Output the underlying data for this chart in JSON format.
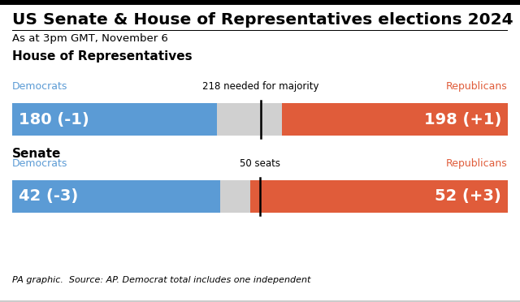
{
  "title": "US Senate & House of Representatives elections 2024",
  "subtitle": "As at 3pm GMT, November 6",
  "footnote": "PA graphic.  Source: AP. Democrat total includes one independent",
  "background_color": "#ffffff",
  "dem_color": "#5b9bd5",
  "rep_color": "#e05c3a",
  "gap_color": "#d0d0d0",
  "house": {
    "section_label": "House of Representatives",
    "dem_label": "Democrats",
    "rep_label": "Republicans",
    "dem_value": 180,
    "dem_change": "(-1)",
    "rep_value": 198,
    "rep_change": "(+1)",
    "total": 435,
    "majority": 218,
    "majority_label": "218 needed for majority"
  },
  "senate": {
    "section_label": "Senate",
    "dem_label": "Democrats",
    "rep_label": "Republicans",
    "dem_value": 42,
    "dem_change": "(-3)",
    "rep_value": 52,
    "rep_change": "(+3)",
    "total": 100,
    "majority": 50,
    "majority_label": "50 seats"
  }
}
